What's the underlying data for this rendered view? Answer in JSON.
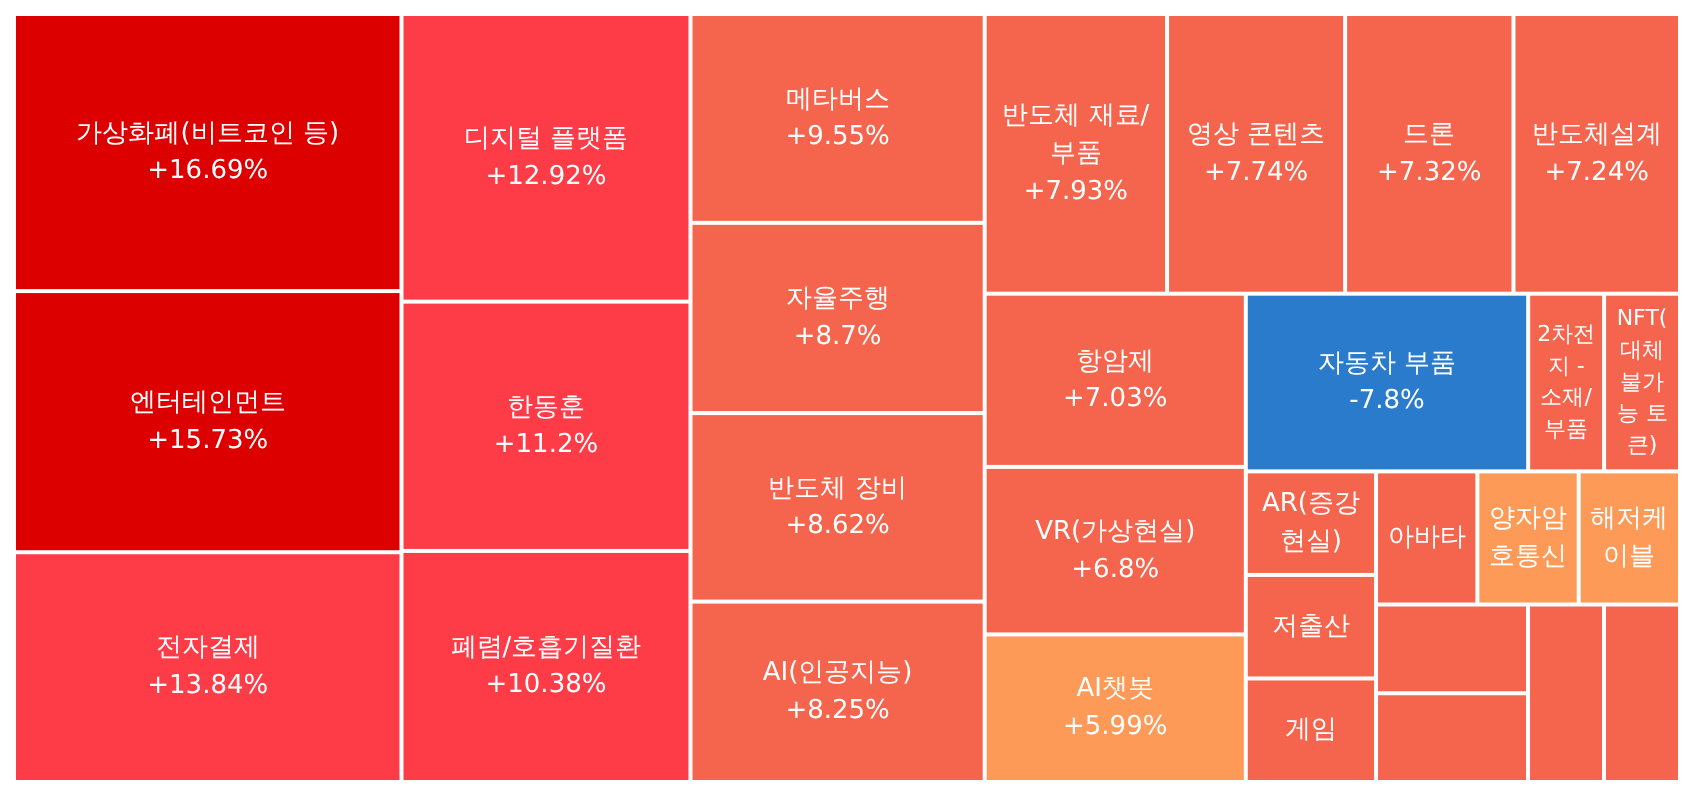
{
  "chart_data": {
    "type": "other",
    "categories": [
      "가상화폐(비트코인 등)",
      "엔터테인먼트",
      "전자결제",
      "디지털 플랫폼",
      "한동훈",
      "폐렴/호흡기질환",
      "메타버스",
      "자율주행",
      "반도체 장비",
      "AI(인공지능)",
      "반도체 재료/부품",
      "영상 콘텐츠",
      "드론",
      "반도체설계",
      "항암제",
      "VR(가상현실)",
      "AI챗봇",
      "자동차 부품",
      "2차전지 - 소재/부품",
      "NFT(대체불가능 토큰)",
      "AR(증강현실)",
      "저출산",
      "게임",
      "아바타",
      "양자암호통신",
      "해저케이블",
      null,
      null,
      null,
      null
    ],
    "values": [
      16.69,
      15.73,
      13.84,
      12.92,
      11.2,
      10.38,
      9.55,
      8.7,
      8.62,
      8.25,
      7.93,
      7.74,
      7.32,
      7.24,
      7.03,
      6.8,
      5.99,
      -7.8,
      null,
      null,
      null,
      null,
      null,
      null,
      null,
      null,
      null,
      null,
      null,
      null
    ],
    "value_labels": [
      "+16.69%",
      "+15.73%",
      "+13.84%",
      "+12.92%",
      "+11.2%",
      "+10.38%",
      "+9.55%",
      "+8.7%",
      "+8.62%",
      "+8.25%",
      "+7.93%",
      "+7.74%",
      "+7.32%",
      "+7.24%",
      "+7.03%",
      "+6.8%",
      "+5.99%",
      "-7.8%",
      null,
      null,
      null,
      null,
      null,
      null,
      null,
      null,
      null,
      null,
      null,
      null
    ],
    "colors": [
      "#dd0000",
      "#dd0000",
      "#fe3c48",
      "#fe3c48",
      "#fe3c48",
      "#fe3c48",
      "#f5644c",
      "#f5644c",
      "#f5644c",
      "#f5644c",
      "#f5644c",
      "#f5644c",
      "#f5644c",
      "#f5644c",
      "#f5644c",
      "#f5644c",
      "#fe9a58",
      "#2a7bcc",
      "#f5644c",
      "#f5644c",
      "#f5644c",
      "#f5644c",
      "#f5644c",
      "#f5644c",
      "#fe9a58",
      "#fe9a58",
      "#f5644c",
      "#f5644c",
      "#f5644c",
      "#f5644c"
    ]
  }
}
